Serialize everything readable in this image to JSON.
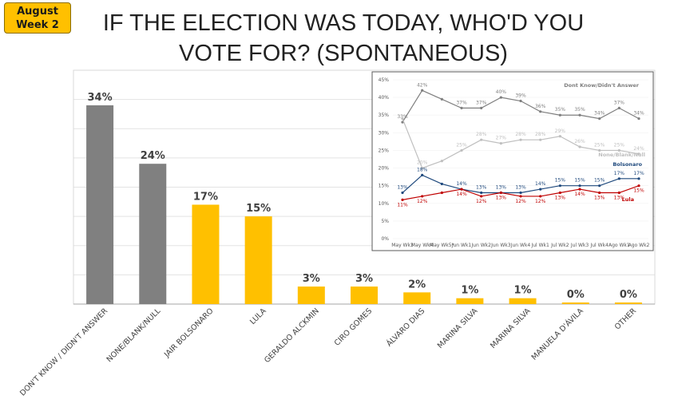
{
  "badge": {
    "line1": "August",
    "line2": "Week 2"
  },
  "title": {
    "line1": "IF THE ELECTION WAS TODAY, WHO'D YOU",
    "line2": "VOTE FOR? (SPONTANEOUS)"
  },
  "chart_data": [
    {
      "type": "bar",
      "title": "IF THE ELECTION WAS TODAY, WHO'D YOU VOTE FOR? (SPONTANEOUS)",
      "categories": [
        "DON'T KNOW / DIDN'T ANSWER",
        "NONE/BLANK/NULL",
        "JAIR BOLSONARO",
        "LULA",
        "GERALDO ALCKMIN",
        "CIRO GOMES",
        "ÁLVARO DIAS",
        "MARINA SILVA",
        "MARINA SILVA",
        "MANUELA D'ÁVILA",
        "OTHER"
      ],
      "values": [
        34,
        24,
        17,
        15,
        3,
        3,
        2,
        1,
        1,
        0,
        0
      ],
      "value_labels": [
        "34%",
        "24%",
        "17%",
        "15%",
        "3%",
        "3%",
        "2%",
        "1%",
        "1%",
        "0%",
        "0%"
      ],
      "bar_colors": [
        "#808080",
        "#808080",
        "#ffc000",
        "#ffc000",
        "#ffc000",
        "#ffc000",
        "#ffc000",
        "#ffc000",
        "#ffc000",
        "#ffc000",
        "#ffc000"
      ],
      "ylim": [
        0,
        40
      ],
      "gridlines": [
        5,
        10,
        15,
        20,
        25,
        30,
        35,
        40
      ]
    },
    {
      "type": "line",
      "categories": [
        "May Wk3",
        "May Wk4",
        "May Wk5*",
        "Jun Wk1",
        "Jun Wk2",
        "Jun Wk3",
        "Jun Wk4",
        "Jul Wk1",
        "Jul Wk2",
        "Jul Wk3",
        "Jul Wk4",
        "Ago Wk1",
        "Ago Wk2"
      ],
      "ylim": [
        0,
        45
      ],
      "ytick_labels": [
        "0%",
        "5%",
        "10%",
        "15%",
        "20%",
        "25%",
        "30%",
        "35%",
        "40%",
        "45%"
      ],
      "series": [
        {
          "name": "Dont Know/Didn't Answer",
          "color": "#7f7f7f",
          "values": [
            33,
            42,
            39.5,
            37,
            37,
            40,
            39,
            36,
            35,
            35,
            34,
            37,
            34
          ],
          "labels": [
            "33%",
            "42%",
            "",
            "37%",
            "37%",
            "40%",
            "39%",
            "36%",
            "35%",
            "35%",
            "34%",
            "37%",
            "34%"
          ]
        },
        {
          "name": "None/Blank/Null",
          "color": "#bfbfbf",
          "values": [
            34,
            20,
            22,
            25,
            28,
            27,
            28,
            28,
            29,
            26,
            25,
            25,
            24
          ],
          "labels": [
            "",
            "20%",
            "",
            "25%",
            "28%",
            "27%",
            "28%",
            "28%",
            "29%",
            "26%",
            "25%",
            "25%",
            "24%"
          ]
        },
        {
          "name": "Bolsonaro",
          "color": "#1f497d",
          "values": [
            13,
            18,
            15.5,
            14,
            13,
            13,
            13,
            14,
            15,
            15,
            15,
            17,
            17
          ],
          "labels": [
            "13%",
            "18%",
            "",
            "14%",
            "13%",
            "13%",
            "13%",
            "14%",
            "15%",
            "15%",
            "15%",
            "17%",
            "17%"
          ]
        },
        {
          "name": "Lula",
          "color": "#c00000",
          "values": [
            11,
            12,
            13,
            14,
            12,
            13,
            12,
            12,
            13,
            14,
            13,
            13,
            15
          ],
          "labels": [
            "11%",
            "12%",
            "",
            "14%",
            "12%",
            "13%",
            "12%",
            "12%",
            "13%",
            "14%",
            "13%",
            "13%",
            "15%"
          ]
        }
      ]
    }
  ]
}
